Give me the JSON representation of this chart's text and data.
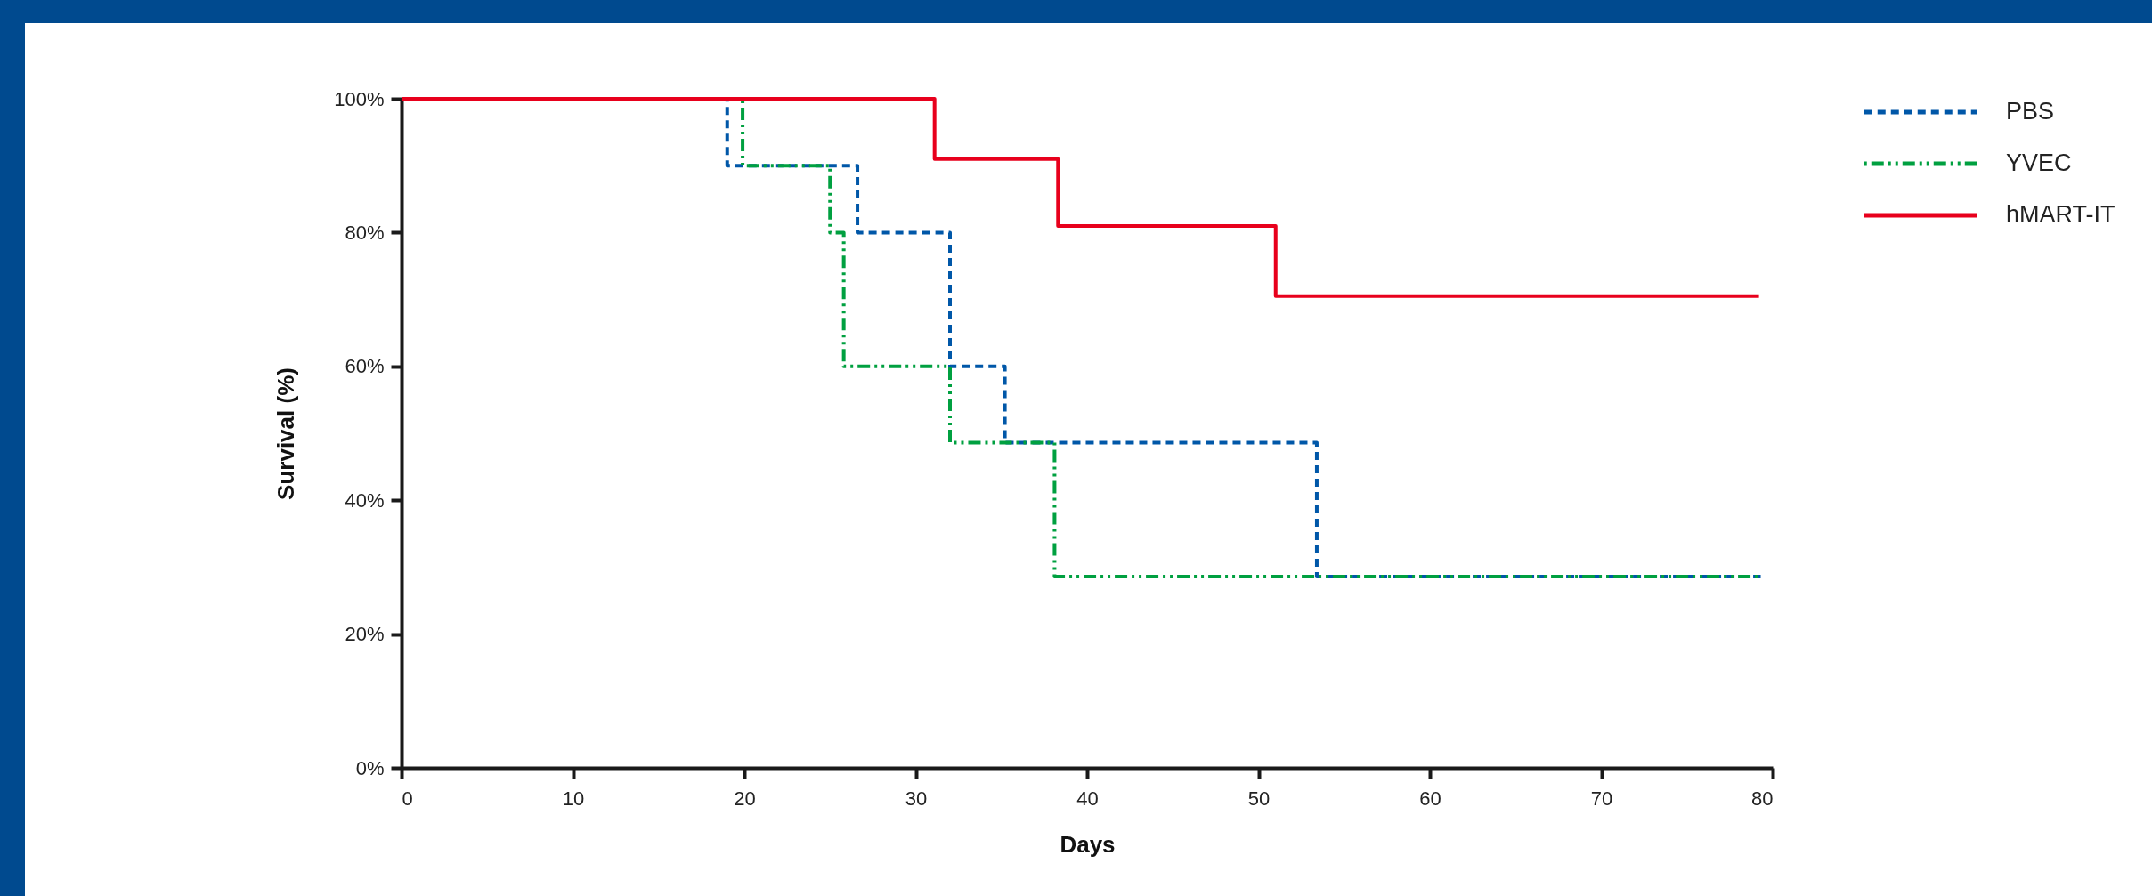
{
  "chart_data": {
    "type": "step",
    "xlabel": "Days",
    "ylabel": "Survival (%)",
    "xlim": [
      0,
      80
    ],
    "xticks": [
      0,
      10,
      20,
      30,
      40,
      50,
      60,
      70,
      80
    ],
    "ylim": [
      0,
      100
    ],
    "yticks": [
      {
        "value": 0,
        "label": "0%"
      },
      {
        "value": 20,
        "label": "20%"
      },
      {
        "value": 40,
        "label": "40%"
      },
      {
        "value": 60,
        "label": "60%"
      },
      {
        "value": 80,
        "label": "80%"
      },
      {
        "value": 100,
        "label": "100%"
      }
    ],
    "grid": false,
    "legend": "top right",
    "marker": "none",
    "series": [
      {
        "name": "PBS",
        "color": "#0057a8",
        "line_style": "dashed",
        "x": [
          0,
          19,
          26.6,
          32,
          35.2,
          53.4,
          79.3
        ],
        "values": [
          100,
          90,
          80,
          60,
          48.6,
          28.6,
          28.6
        ]
      },
      {
        "name": "YVEC",
        "color": "#00a040",
        "line_style": "dotted",
        "x": [
          0,
          19.9,
          25,
          25.8,
          32,
          38.1,
          79.3
        ],
        "values": [
          100,
          90,
          80,
          60,
          48.6,
          28.6,
          28.6
        ]
      },
      {
        "name": "hMART-IT",
        "color": "#e8001c",
        "line_style": "solid",
        "x": [
          0,
          31.1,
          38.3,
          51,
          79.2
        ],
        "values": [
          100,
          91,
          81,
          70.5,
          70.5
        ]
      }
    ]
  }
}
